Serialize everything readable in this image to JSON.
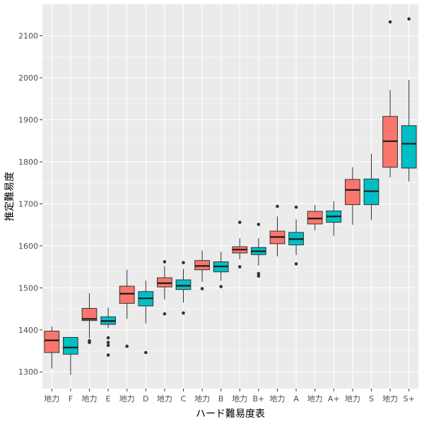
{
  "chart_data": {
    "type": "boxplot",
    "xlabel": "ハード難易度表",
    "ylabel": "推定難易度",
    "ylim": [
      1260,
      2175
    ],
    "yticks": [
      1300,
      1400,
      1500,
      1600,
      1700,
      1800,
      1900,
      2000,
      2100
    ],
    "grid": true,
    "legend": "none",
    "background": "#ebebeb",
    "gridColor": "#ffffff",
    "series_colors": {
      "地力": "#f8766d",
      "other": "#00bfc4"
    },
    "categories": [
      "地力",
      "F",
      "地力",
      "E",
      "地力",
      "D",
      "地力",
      "C",
      "地力",
      "B",
      "地力",
      "B+",
      "地力",
      "A",
      "地力",
      "A+",
      "地力",
      "S",
      "地力",
      "S+"
    ],
    "boxes": [
      {
        "group": "地力",
        "whisker_low": 1308,
        "q1": 1346,
        "median": 1375,
        "q3": 1397,
        "whisker_high": 1408,
        "outliers": []
      },
      {
        "group": "other",
        "whisker_low": 1293,
        "q1": 1342,
        "median": 1358,
        "q3": 1382,
        "whisker_high": 1382,
        "outliers": []
      },
      {
        "group": "地力",
        "whisker_low": 1380,
        "q1": 1422,
        "median": 1426,
        "q3": 1451,
        "whisker_high": 1487,
        "outliers": [
          1370,
          1374
        ]
      },
      {
        "group": "other",
        "whisker_low": 1404,
        "q1": 1413,
        "median": 1421,
        "q3": 1431,
        "whisker_high": 1453,
        "outliers": [
          1340,
          1363,
          1370,
          1381
        ]
      },
      {
        "group": "地力",
        "whisker_low": 1426,
        "q1": 1463,
        "median": 1486,
        "q3": 1504,
        "whisker_high": 1543,
        "outliers": [
          1361
        ]
      },
      {
        "group": "other",
        "whisker_low": 1415,
        "q1": 1457,
        "median": 1475,
        "q3": 1491,
        "whisker_high": 1517,
        "outliers": [
          1346
        ]
      },
      {
        "group": "地力",
        "whisker_low": 1472,
        "q1": 1502,
        "median": 1511,
        "q3": 1524,
        "whisker_high": 1552,
        "outliers": [
          1438,
          1562
        ]
      },
      {
        "group": "other",
        "whisker_low": 1465,
        "q1": 1496,
        "median": 1505,
        "q3": 1519,
        "whisker_high": 1545,
        "outliers": [
          1440,
          1560
        ]
      },
      {
        "group": "地力",
        "whisker_low": 1514,
        "q1": 1543,
        "median": 1552,
        "q3": 1565,
        "whisker_high": 1589,
        "outliers": [
          1498
        ]
      },
      {
        "group": "other",
        "whisker_low": 1517,
        "q1": 1538,
        "median": 1551,
        "q3": 1562,
        "whisker_high": 1586,
        "outliers": [
          1503
        ]
      },
      {
        "group": "地力",
        "whisker_low": 1568,
        "q1": 1583,
        "median": 1591,
        "q3": 1598,
        "whisker_high": 1618,
        "outliers": [
          1550,
          1656
        ]
      },
      {
        "group": "other",
        "whisker_low": 1553,
        "q1": 1579,
        "median": 1587,
        "q3": 1596,
        "whisker_high": 1618,
        "outliers": [
          1528,
          1534,
          1651
        ]
      },
      {
        "group": "地力",
        "whisker_low": 1575,
        "q1": 1605,
        "median": 1621,
        "q3": 1635,
        "whisker_high": 1670,
        "outliers": [
          1694
        ]
      },
      {
        "group": "other",
        "whisker_low": 1578,
        "q1": 1602,
        "median": 1616,
        "q3": 1632,
        "whisker_high": 1663,
        "outliers": [
          1557,
          1692
        ]
      },
      {
        "group": "地力",
        "whisker_low": 1637,
        "q1": 1652,
        "median": 1665,
        "q3": 1682,
        "whisker_high": 1697,
        "outliers": []
      },
      {
        "group": "other",
        "whisker_low": 1624,
        "q1": 1656,
        "median": 1670,
        "q3": 1683,
        "whisker_high": 1706,
        "outliers": []
      },
      {
        "group": "地力",
        "whisker_low": 1650,
        "q1": 1698,
        "median": 1733,
        "q3": 1758,
        "whisker_high": 1787,
        "outliers": []
      },
      {
        "group": "other",
        "whisker_low": 1662,
        "q1": 1698,
        "median": 1730,
        "q3": 1759,
        "whisker_high": 1819,
        "outliers": []
      },
      {
        "group": "地力",
        "whisker_low": 1763,
        "q1": 1787,
        "median": 1849,
        "q3": 1908,
        "whisker_high": 1971,
        "outliers": [
          2133
        ]
      },
      {
        "group": "other",
        "whisker_low": 1753,
        "q1": 1785,
        "median": 1843,
        "q3": 1886,
        "whisker_high": 1995,
        "outliers": [
          2140
        ]
      }
    ]
  }
}
